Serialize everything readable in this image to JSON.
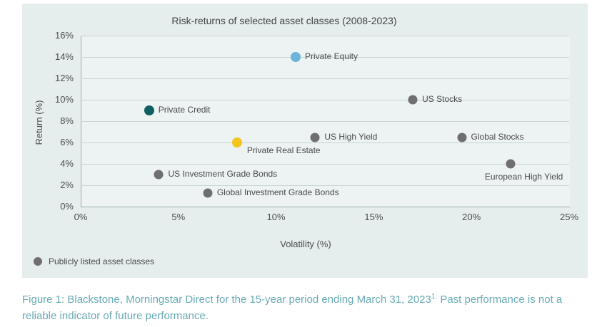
{
  "title": "Risk-returns of selected asset classes (2008-2023)",
  "chart_data": {
    "type": "scatter",
    "title": "Risk-returns of selected asset classes (2008-2023)",
    "xlabel": "Volatility (%)",
    "ylabel": "Return (%)",
    "xlim": [
      0,
      25
    ],
    "ylim": [
      0,
      16
    ],
    "x_ticks": [
      "0%",
      "5%",
      "10%",
      "15%",
      "20%",
      "25%"
    ],
    "y_ticks": [
      "16%",
      "14%",
      "12%",
      "10%",
      "8%",
      "6%",
      "4%",
      "2%",
      "0%"
    ],
    "grid": "horizontal-only",
    "points": [
      {
        "name": "Private Equity",
        "volatility": 11,
        "return": 14,
        "color": "#6cb4dc",
        "group": "private",
        "label_placement": "right"
      },
      {
        "name": "US Stocks",
        "volatility": 17,
        "return": 10,
        "color": "#6f6f6f",
        "group": "publicly-listed",
        "label_placement": "right"
      },
      {
        "name": "Private Credit",
        "volatility": 3.5,
        "return": 9,
        "color": "#0e5e62",
        "group": "private",
        "label_placement": "right"
      },
      {
        "name": "US High Yield",
        "volatility": 12,
        "return": 6.5,
        "color": "#6f6f6f",
        "group": "publicly-listed",
        "label_placement": "right"
      },
      {
        "name": "Global Stocks",
        "volatility": 19.5,
        "return": 6.5,
        "color": "#6f6f6f",
        "group": "publicly-listed",
        "label_placement": "right"
      },
      {
        "name": "Private Real Estate",
        "volatility": 8,
        "return": 6,
        "color": "#f3c51d",
        "group": "private",
        "label_placement": "below-right"
      },
      {
        "name": "European High Yield",
        "volatility": 22,
        "return": 4,
        "color": "#6f6f6f",
        "group": "publicly-listed",
        "label_placement": "below"
      },
      {
        "name": "US Investment Grade Bonds",
        "volatility": 4,
        "return": 3,
        "color": "#6f6f6f",
        "group": "publicly-listed",
        "label_placement": "right"
      },
      {
        "name": "Global Investment Grade Bonds",
        "volatility": 6.5,
        "return": 1.3,
        "color": "#6f6f6f",
        "group": "publicly-listed",
        "label_placement": "right"
      }
    ],
    "legend": {
      "marker_color": "#6f6f6f",
      "label": "Publicly listed asset classes",
      "position": "bottom-left"
    }
  },
  "caption": {
    "pre": "Figure 1: Blackstone, Morningstar Direct for the 15-year period ending March 31, 2023",
    "sup": "1.",
    "post": " Past performance is not a",
    "line2": "reliable indicator of future performance.",
    "color": "#68aab5"
  },
  "colors": {
    "panel_background": "#e5eeed",
    "plot_background": "#ecf3f2",
    "gridline": "#c9d4d3",
    "axis": "#9fadad",
    "text": "#4a4a4a",
    "private_equity_blue": "#6cb4dc",
    "private_credit_teal": "#0e5e62",
    "private_real_estate_yellow": "#f3c51d",
    "public_gray": "#6f6f6f",
    "caption_teal": "#68aab5"
  }
}
